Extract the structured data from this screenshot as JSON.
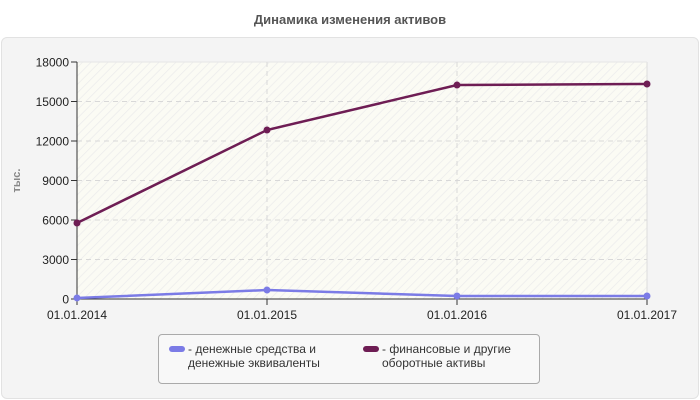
{
  "chart_data": {
    "type": "line",
    "title": "Динамика изменения активов",
    "xlabel": "",
    "ylabel": "тыс.",
    "categories": [
      "01.01.2014",
      "01.01.2015",
      "01.01.2016",
      "01.01.2017"
    ],
    "yticks": [
      0,
      3000,
      6000,
      9000,
      12000,
      15000,
      18000
    ],
    "ylim": [
      0,
      18000
    ],
    "grid": true,
    "legend_position": "bottom",
    "series": [
      {
        "name": "денежные средства и денежные эквиваленты",
        "color": "#7b7be6",
        "values": [
          80,
          680,
          230,
          230
        ]
      },
      {
        "name": "финансовые и другие оборотные активы",
        "color": "#6e1d54",
        "values": [
          5770,
          12835,
          16250,
          16330
        ]
      }
    ]
  },
  "legend": {
    "items": [
      {
        "label": "- денежные средства и\nденежные эквиваленты",
        "color": "#7b7be6"
      },
      {
        "label": "- финансовые и другие\nоборотные активы",
        "color": "#6e1d54"
      }
    ]
  }
}
